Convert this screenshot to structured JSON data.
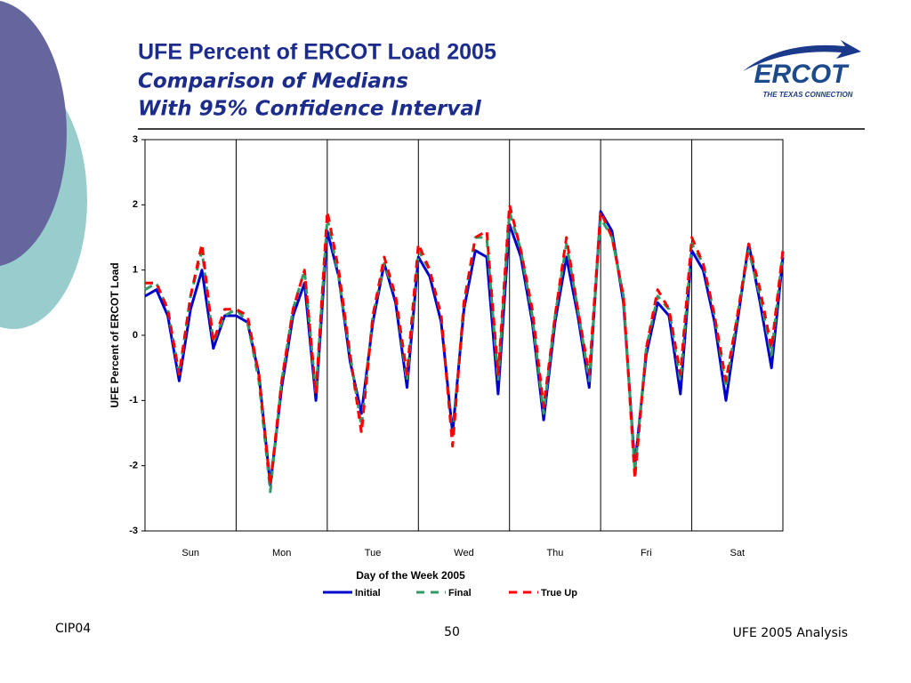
{
  "slide": {
    "title": "UFE Percent of ERCOT Load 2005",
    "subtitle_1": "Comparison of Medians",
    "subtitle_2": "With 95% Confidence Interval"
  },
  "logo": {
    "name": "ERCOT",
    "tagline": "THE TEXAS CONNECTION"
  },
  "chart_data": {
    "type": "line",
    "x_label": "Day of the Week 2005",
    "y_label": "UFE Percent of ERCOT Load",
    "x": [
      0,
      3,
      6,
      9,
      12,
      15,
      18,
      21,
      24,
      27,
      30,
      33,
      36,
      39,
      42,
      45,
      48,
      51,
      54,
      57,
      60,
      63,
      66,
      69,
      72,
      75,
      78,
      81,
      84,
      87,
      90,
      93,
      96,
      99,
      102,
      105,
      108,
      111,
      114,
      117,
      120,
      123,
      126,
      129,
      132,
      135,
      138,
      141,
      144,
      147,
      150,
      153,
      156,
      159,
      162,
      165,
      168
    ],
    "xlim": [
      0,
      168
    ],
    "xticks": [
      {
        "value": 12,
        "label": "Sun"
      },
      {
        "value": 36,
        "label": "Mon"
      },
      {
        "value": 60,
        "label": "Tue"
      },
      {
        "value": 84,
        "label": "Wed"
      },
      {
        "value": 108,
        "label": "Thu"
      },
      {
        "value": 132,
        "label": "Fri"
      },
      {
        "value": 156,
        "label": "Sat"
      }
    ],
    "xgrid": [
      24,
      48,
      72,
      96,
      120,
      144
    ],
    "ylim": [
      -3,
      3
    ],
    "yticks": [
      -3,
      -2,
      -1,
      0,
      1,
      2,
      3
    ],
    "legend": "bottom",
    "series": [
      {
        "name": "Initial",
        "color": "#0000cc",
        "dash": "solid",
        "values": [
          0.6,
          0.7,
          0.3,
          -0.7,
          0.4,
          1.0,
          -0.2,
          0.3,
          0.3,
          0.2,
          -0.6,
          -2.3,
          -0.8,
          0.3,
          0.8,
          -1.0,
          1.6,
          0.9,
          -0.4,
          -1.2,
          0.2,
          1.1,
          0.5,
          -0.8,
          1.2,
          0.9,
          0.2,
          -1.5,
          0.4,
          1.3,
          1.2,
          -0.9,
          1.7,
          1.2,
          0.2,
          -1.3,
          0.2,
          1.2,
          0.3,
          -0.8,
          1.9,
          1.6,
          0.5,
          -2.0,
          -0.3,
          0.5,
          0.3,
          -0.9,
          1.3,
          1.0,
          0.2,
          -1.0,
          0.2,
          1.4,
          0.5,
          -0.5,
          1.2
        ]
      },
      {
        "name": "Final",
        "color": "#339966",
        "dash": "dashed",
        "values": [
          0.7,
          0.8,
          0.4,
          -0.6,
          0.6,
          1.3,
          -0.1,
          0.3,
          0.4,
          0.2,
          -0.7,
          -2.4,
          -0.7,
          0.4,
          1.0,
          -0.9,
          1.8,
          0.9,
          -0.3,
          -1.4,
          0.3,
          1.1,
          0.6,
          -0.7,
          1.3,
          1.0,
          0.3,
          -1.6,
          0.5,
          1.5,
          1.5,
          -0.7,
          1.9,
          1.3,
          0.3,
          -1.2,
          0.3,
          1.4,
          0.4,
          -0.7,
          1.8,
          1.5,
          0.6,
          -2.1,
          -0.2,
          0.6,
          0.4,
          -0.7,
          1.4,
          1.1,
          0.3,
          -0.8,
          0.3,
          1.3,
          0.6,
          -0.3,
          1.3
        ]
      },
      {
        "name": "True Up",
        "color": "#ff0000",
        "dash": "dashed",
        "values": [
          0.8,
          0.8,
          0.4,
          -0.6,
          0.6,
          1.4,
          -0.1,
          0.4,
          0.4,
          0.3,
          -0.6,
          -2.3,
          -0.7,
          0.4,
          1.0,
          -0.9,
          1.9,
          1.0,
          -0.3,
          -1.5,
          0.3,
          1.2,
          0.6,
          -0.6,
          1.4,
          1.0,
          0.3,
          -1.7,
          0.5,
          1.5,
          1.6,
          -0.6,
          2.0,
          1.3,
          0.4,
          -1.1,
          0.3,
          1.5,
          0.4,
          -0.6,
          1.9,
          1.5,
          0.6,
          -2.2,
          -0.2,
          0.7,
          0.4,
          -0.6,
          1.5,
          1.1,
          0.3,
          -0.7,
          0.3,
          1.4,
          0.7,
          -0.2,
          1.3
        ]
      }
    ]
  },
  "footer": {
    "left": "CIP04",
    "page": "50",
    "right": "UFE 2005 Analysis"
  }
}
